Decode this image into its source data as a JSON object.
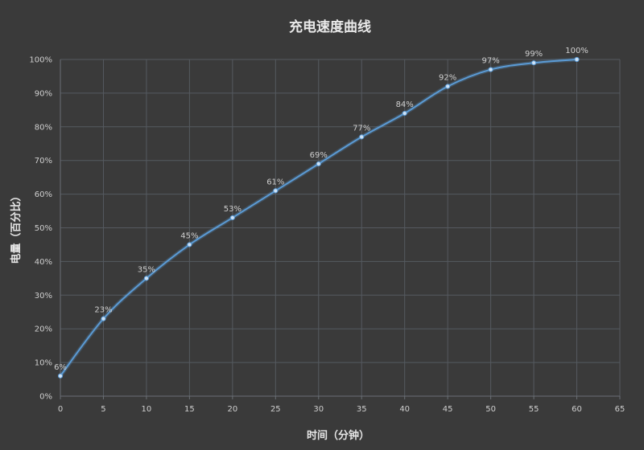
{
  "chart_data": {
    "type": "line",
    "title": "充电速度曲线",
    "xlabel": "时间（分钟）",
    "ylabel": "电量（百分比）",
    "x": [
      0,
      5,
      10,
      15,
      20,
      25,
      30,
      35,
      40,
      45,
      50,
      55,
      60
    ],
    "series": [
      {
        "values": [
          6,
          23,
          35,
          45,
          53,
          61,
          69,
          77,
          84,
          92,
          97,
          99,
          100
        ],
        "labels": [
          "6%",
          "23%",
          "35%",
          "45%",
          "53%",
          "61%",
          "69%",
          "77%",
          "84%",
          "92%",
          "97%",
          "99%",
          "100%"
        ]
      }
    ],
    "xlim": [
      0,
      65
    ],
    "ylim": [
      0,
      100
    ],
    "x_ticks": [
      "0",
      "5",
      "10",
      "15",
      "20",
      "25",
      "30",
      "35",
      "40",
      "45",
      "50",
      "55",
      "60",
      "65"
    ],
    "y_ticks": [
      "0%",
      "10%",
      "20%",
      "30%",
      "40%",
      "50%",
      "60%",
      "70%",
      "80%",
      "90%",
      "100%"
    ],
    "grid": true,
    "colors": {
      "line": "#5b9bd5",
      "background": "#3a3a3a",
      "grid": "#555a60"
    }
  }
}
